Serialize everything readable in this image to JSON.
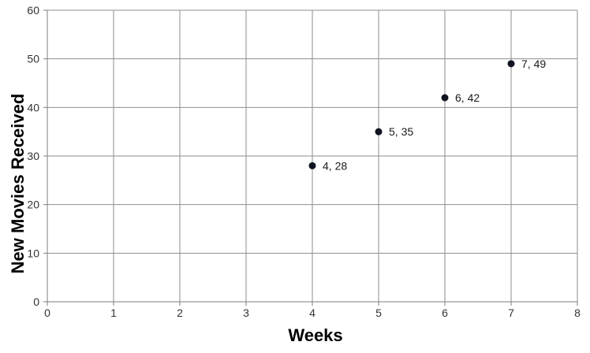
{
  "chart_data": {
    "type": "scatter",
    "title": "",
    "xlabel": "Weeks",
    "ylabel": "New Movies Received",
    "points": [
      {
        "x": 4,
        "y": 28,
        "label": "4, 28"
      },
      {
        "x": 5,
        "y": 35,
        "label": "5, 35"
      },
      {
        "x": 6,
        "y": 42,
        "label": "6, 42"
      },
      {
        "x": 7,
        "y": 49,
        "label": "7, 49"
      }
    ],
    "xlim": [
      0,
      8
    ],
    "ylim": [
      0,
      60
    ],
    "xticks": [
      0,
      1,
      2,
      3,
      4,
      5,
      6,
      7,
      8
    ],
    "yticks": [
      0,
      10,
      20,
      30,
      40,
      50,
      60
    ],
    "grid": true,
    "legend": "none",
    "colors": {
      "background": "#ffffff",
      "gridline": "#8e8e8e",
      "axis": "#7d7d7d",
      "tick_label": "#333333",
      "data_label": "#1a1a1a",
      "marker": "#0f1420",
      "title": "#000000"
    }
  }
}
